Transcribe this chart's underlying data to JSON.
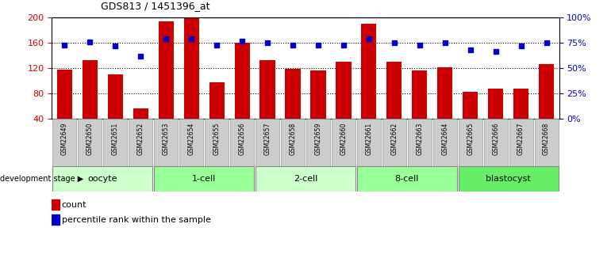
{
  "title": "GDS813 / 1451396_at",
  "samples": [
    "GSM22649",
    "GSM22650",
    "GSM22651",
    "GSM22652",
    "GSM22653",
    "GSM22654",
    "GSM22655",
    "GSM22656",
    "GSM22657",
    "GSM22658",
    "GSM22659",
    "GSM22660",
    "GSM22661",
    "GSM22662",
    "GSM22663",
    "GSM22664",
    "GSM22665",
    "GSM22666",
    "GSM22667",
    "GSM22668"
  ],
  "counts": [
    118,
    133,
    110,
    57,
    194,
    200,
    98,
    160,
    133,
    119,
    117,
    130,
    191,
    130,
    117,
    121,
    83,
    88,
    88,
    126
  ],
  "percentiles": [
    73,
    76,
    72,
    62,
    79,
    79,
    73,
    77,
    75,
    73,
    73,
    73,
    79,
    75,
    73,
    75,
    68,
    67,
    72,
    75
  ],
  "ylim_left": [
    40,
    200
  ],
  "ylim_right": [
    0,
    100
  ],
  "yticks_left": [
    40,
    80,
    120,
    160,
    200
  ],
  "yticks_right": [
    0,
    25,
    50,
    75,
    100
  ],
  "bar_color": "#cc0000",
  "dot_color": "#0000cc",
  "stages": [
    {
      "label": "oocyte",
      "start": 0,
      "end": 3,
      "color": "#ccffcc"
    },
    {
      "label": "1-cell",
      "start": 4,
      "end": 7,
      "color": "#99ff99"
    },
    {
      "label": "2-cell",
      "start": 8,
      "end": 11,
      "color": "#ccffcc"
    },
    {
      "label": "8-cell",
      "start": 12,
      "end": 15,
      "color": "#99ff99"
    },
    {
      "label": "blastocyst",
      "start": 16,
      "end": 19,
      "color": "#66ee66"
    }
  ],
  "tick_label_color_left": "#cc0000",
  "tick_label_color_right": "#0000cc",
  "background_color": "#ffffff",
  "stage_box_color": "#bbbbbb",
  "sample_bg_color": "#cccccc"
}
